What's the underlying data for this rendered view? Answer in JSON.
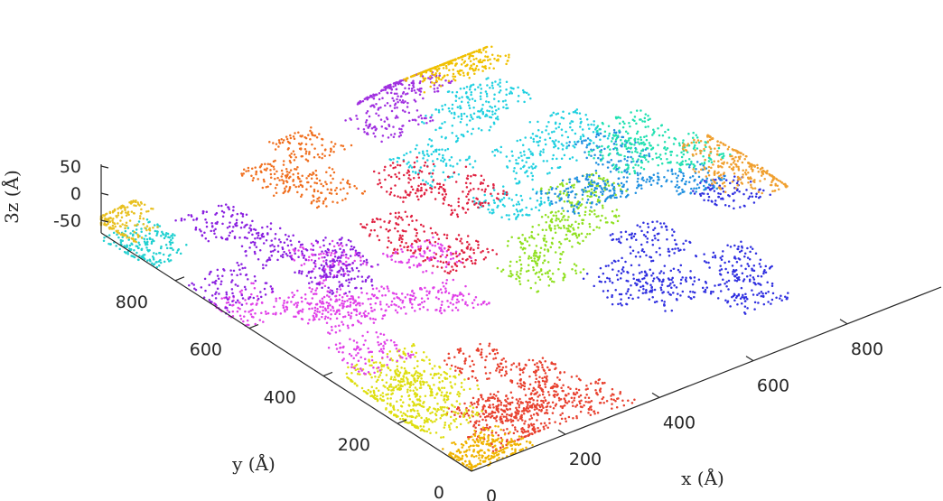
{
  "chart_data": {
    "type": "scatter",
    "subtype": "3d-scatter-surface",
    "title": "",
    "xlabel": "x (Å)",
    "ylabel": "y (Å)",
    "zlabel": "3z (Å)",
    "xlim": [
      0,
      1000
    ],
    "ylim": [
      0,
      1000
    ],
    "zlim": [
      -60,
      60
    ],
    "xticks": [
      "0",
      "200",
      "400",
      "600",
      "800"
    ],
    "yticks": [
      "0",
      "200",
      "400",
      "600",
      "800"
    ],
    "zticks": [
      "50",
      "0",
      "-50"
    ],
    "grid": false,
    "legend": "none",
    "series": [
      {
        "color": "#e8412f",
        "points": [
          [
            100,
            20,
            10
          ],
          [
            180,
            60,
            5
          ],
          [
            150,
            150,
            -10
          ],
          [
            250,
            120,
            0
          ],
          [
            300,
            200,
            -5
          ],
          [
            220,
            250,
            15
          ],
          [
            120,
            90,
            20
          ],
          [
            300,
            50,
            8
          ]
        ]
      },
      {
        "color": "#dede10",
        "points": [
          [
            10,
            180,
            20
          ],
          [
            40,
            230,
            30
          ],
          [
            80,
            280,
            35
          ],
          [
            20,
            300,
            25
          ],
          [
            60,
            150,
            12
          ],
          [
            90,
            210,
            30
          ]
        ]
      },
      {
        "color": "#f0b400",
        "points": [
          [
            40,
            30,
            5
          ],
          [
            80,
            40,
            -10
          ],
          [
            20,
            10,
            0
          ]
        ]
      },
      {
        "color": "#e040e8",
        "points": [
          [
            100,
            400,
            0
          ],
          [
            200,
            500,
            10
          ],
          [
            150,
            600,
            -5
          ],
          [
            300,
            450,
            15
          ],
          [
            250,
            700,
            0
          ],
          [
            50,
            650,
            5
          ],
          [
            380,
            600,
            12
          ],
          [
            120,
            520,
            8
          ]
        ]
      },
      {
        "color": "#8a20e0",
        "points": [
          [
            80,
            750,
            -20
          ],
          [
            200,
            800,
            -10
          ],
          [
            300,
            750,
            -30
          ],
          [
            150,
            870,
            10
          ],
          [
            250,
            680,
            -25
          ]
        ]
      },
      {
        "color": "#3030e0",
        "points": [
          [
            600,
            350,
            -10
          ],
          [
            700,
            400,
            0
          ],
          [
            800,
            300,
            -20
          ],
          [
            900,
            450,
            10
          ],
          [
            750,
            200,
            -15
          ],
          [
            650,
            280,
            -5
          ]
        ]
      },
      {
        "color": "#90e020",
        "points": [
          [
            550,
            500,
            15
          ],
          [
            650,
            520,
            10
          ],
          [
            700,
            580,
            20
          ],
          [
            500,
            450,
            5
          ]
        ]
      },
      {
        "color": "#20d0e0",
        "points": [
          [
            550,
            800,
            30
          ],
          [
            650,
            850,
            40
          ],
          [
            700,
            720,
            20
          ],
          [
            800,
            750,
            25
          ],
          [
            600,
            650,
            10
          ],
          [
            750,
            900,
            30
          ]
        ]
      },
      {
        "color": "#2090e0",
        "points": [
          [
            700,
            600,
            5
          ],
          [
            800,
            620,
            -10
          ],
          [
            850,
            700,
            0
          ],
          [
            900,
            550,
            -5
          ]
        ]
      },
      {
        "color": "#20e0b0",
        "points": [
          [
            850,
            650,
            10
          ],
          [
            900,
            700,
            20
          ],
          [
            950,
            620,
            5
          ]
        ]
      },
      {
        "color": "#f0a030",
        "points": [
          [
            950,
            500,
            10
          ],
          [
            990,
            580,
            15
          ],
          [
            1000,
            470,
            5
          ]
        ]
      },
      {
        "color": "#f07020",
        "points": [
          [
            300,
            900,
            40
          ],
          [
            400,
            950,
            50
          ],
          [
            350,
            850,
            30
          ]
        ]
      },
      {
        "color": "#e02040",
        "points": [
          [
            400,
            700,
            10
          ],
          [
            500,
            800,
            20
          ],
          [
            450,
            620,
            -10
          ],
          [
            550,
            720,
            15
          ]
        ]
      },
      {
        "color": "#a030e0",
        "points": [
          [
            550,
            920,
            50
          ],
          [
            650,
            980,
            60
          ],
          [
            600,
            1000,
            55
          ]
        ]
      },
      {
        "color": "#f0c000",
        "points": [
          [
            700,
            1000,
            70
          ],
          [
            780,
            990,
            60
          ],
          [
            740,
            1000,
            65
          ]
        ]
      },
      {
        "color": "#20d0d0",
        "points": [
          [
            20,
            900,
            0
          ],
          [
            40,
            950,
            -10
          ]
        ]
      },
      {
        "color": "#e8c020",
        "points": [
          [
            20,
            1000,
            30
          ],
          [
            0,
            960,
            20
          ]
        ]
      }
    ]
  }
}
